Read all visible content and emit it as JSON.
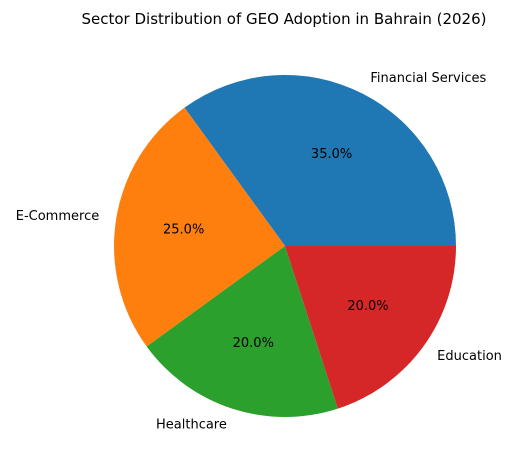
{
  "chart_data": {
    "type": "pie",
    "title": "Sector Distribution of GEO Adoption in Bahrain (2026)",
    "slices": [
      {
        "label": "Financial Services",
        "value": 35.0,
        "pct_label": "35.0%",
        "color": "#1f77b4"
      },
      {
        "label": "E-Commerce",
        "value": 25.0,
        "pct_label": "25.0%",
        "color": "#ff7f0e"
      },
      {
        "label": "Healthcare",
        "value": 20.0,
        "pct_label": "20.0%",
        "color": "#2ca02c"
      },
      {
        "label": "Education",
        "value": 20.0,
        "pct_label": "20.0%",
        "color": "#d62728"
      }
    ],
    "start_angle_deg": 0,
    "direction": "counterclockwise"
  }
}
